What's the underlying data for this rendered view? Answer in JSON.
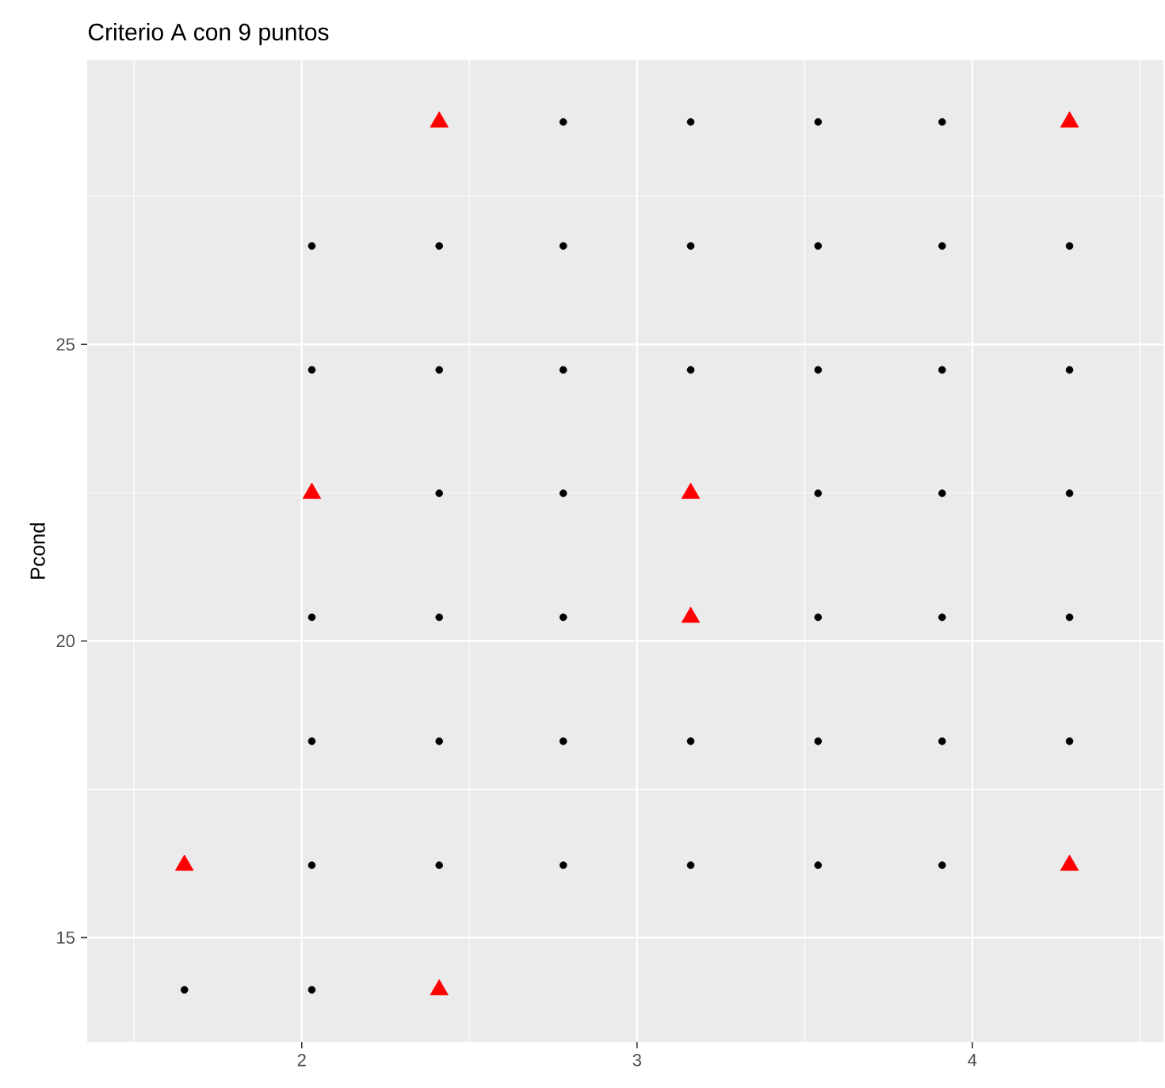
{
  "chart_data": {
    "type": "scatter",
    "title": "Criterio A con 9 puntos",
    "ylabel": "Pcond",
    "xlim": [
      1.36,
      4.57
    ],
    "ylim": [
      13.24,
      29.79
    ],
    "xticks": [
      {
        "value": 1.5,
        "label": null
      },
      2,
      {
        "value": 2.5,
        "label": null
      },
      3,
      {
        "value": 3.5,
        "label": null
      },
      4,
      {
        "value": 4.5,
        "label": null
      }
    ],
    "yticks": [
      15,
      {
        "value": 17.5,
        "label": null
      },
      20,
      {
        "value": 22.5,
        "label": null
      },
      25,
      {
        "value": 27.5,
        "label": null
      }
    ],
    "grid": true,
    "series": [
      {
        "color": "#000000",
        "marker": "circle",
        "x": [
          2.78,
          3.16,
          3.54,
          3.91,
          2.03,
          2.41,
          2.78,
          3.16,
          3.54,
          3.91,
          4.29,
          2.03,
          2.41,
          2.78,
          3.16,
          3.54,
          3.91,
          4.29,
          2.41,
          2.78,
          3.54,
          3.91,
          4.29,
          2.03,
          2.41,
          2.78,
          3.54,
          3.91,
          4.29,
          2.03,
          2.41,
          2.78,
          3.16,
          3.54,
          3.91,
          4.29,
          2.03,
          2.41,
          2.78,
          3.16,
          3.54,
          3.91,
          1.65,
          2.03
        ],
        "values": [
          28.75,
          28.75,
          28.75,
          28.75,
          26.66,
          26.66,
          26.66,
          26.66,
          26.66,
          26.66,
          26.66,
          24.57,
          24.57,
          24.57,
          24.57,
          24.57,
          24.57,
          24.57,
          22.49,
          22.49,
          22.49,
          22.49,
          22.49,
          20.4,
          20.4,
          20.4,
          20.4,
          20.4,
          20.4,
          18.31,
          18.31,
          18.31,
          18.31,
          18.31,
          18.31,
          18.31,
          16.22,
          16.22,
          16.22,
          16.22,
          16.22,
          16.22,
          14.12,
          14.12
        ]
      },
      {
        "color": "#ff0000",
        "marker": "triangle",
        "x": [
          2.41,
          4.29,
          2.03,
          3.16,
          3.16,
          1.65,
          4.29,
          2.41
        ],
        "values": [
          28.75,
          28.75,
          22.49,
          22.49,
          20.4,
          16.22,
          16.22,
          14.12
        ]
      }
    ]
  }
}
